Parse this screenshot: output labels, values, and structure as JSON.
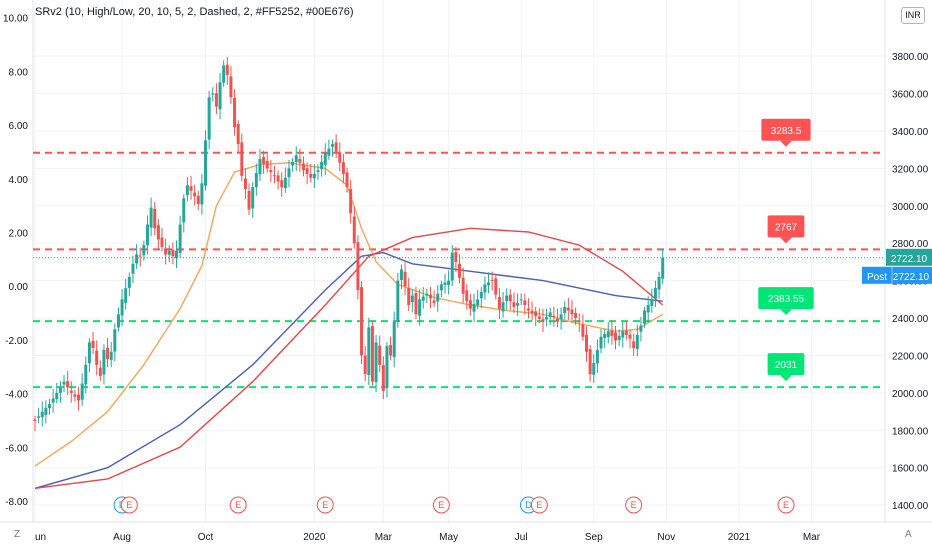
{
  "study_title": "SRv2 (10, High/Low, 20, 10, 5, 2, Dashed, 2, #FF5252, #00E676)",
  "currency": "INR",
  "corner_left": "Z",
  "corner_right": "A",
  "colors": {
    "up": "#26a69a",
    "down": "#ef5350",
    "resistance": "#FF5252",
    "support": "#00E676",
    "ma_blue": "#4a5fb0",
    "ma_red": "#e8464a",
    "ma_orange": "#f5a55a",
    "last_price_bg": "#26a69a",
    "post_bg": "#2196f3"
  },
  "chart_data": {
    "type": "line",
    "title": "",
    "x_axis_labels": [
      "un",
      "Aug",
      "Oct",
      "2020",
      "Mar",
      "May",
      "Jul",
      "Sep",
      "Nov",
      "2021",
      "Mar"
    ],
    "left_axis": {
      "ticks": [
        "10.00",
        "8.00",
        "6.00",
        "4.00",
        "2.00",
        "0.00",
        "-2.00",
        "-4.00",
        "-6.00",
        "-8.00"
      ],
      "range": [
        -8,
        10
      ]
    },
    "right_axis": {
      "ticks": [
        "3800.00",
        "3600.00",
        "3400.00",
        "3200.00",
        "3000.00",
        "2800.00",
        "2600.00",
        "2400.00",
        "2200.00",
        "2000.00",
        "1800.00",
        "1600.00",
        "1400.00"
      ],
      "range": [
        1310,
        4100
      ]
    },
    "price_series": {
      "name": "",
      "points": [
        [
          0,
          1850
        ],
        [
          2,
          1900
        ],
        [
          4,
          1940
        ],
        [
          6,
          2000
        ],
        [
          8,
          2060
        ],
        [
          10,
          2000
        ],
        [
          12,
          1960
        ],
        [
          13,
          2050
        ],
        [
          14,
          2150
        ],
        [
          15,
          2270
        ],
        [
          16,
          2240
        ],
        [
          17,
          2150
        ],
        [
          18,
          2090
        ],
        [
          19,
          2230
        ],
        [
          20,
          2180
        ],
        [
          21,
          2220
        ],
        [
          22,
          2340
        ],
        [
          23,
          2420
        ],
        [
          24,
          2500
        ],
        [
          25,
          2560
        ],
        [
          26,
          2620
        ],
        [
          27,
          2690
        ],
        [
          28,
          2740
        ],
        [
          29,
          2730
        ],
        [
          30,
          2790
        ],
        [
          31,
          2900
        ],
        [
          32,
          2990
        ],
        [
          33,
          2880
        ],
        [
          34,
          2820
        ],
        [
          35,
          2780
        ],
        [
          36,
          2740
        ],
        [
          37,
          2760
        ],
        [
          38,
          2730
        ],
        [
          39,
          2760
        ],
        [
          40,
          2900
        ],
        [
          41,
          3040
        ],
        [
          42,
          3110
        ],
        [
          43,
          3080
        ],
        [
          44,
          3050
        ],
        [
          45,
          3010
        ],
        [
          46,
          3120
        ],
        [
          47,
          3350
        ],
        [
          48,
          3580
        ],
        [
          49,
          3600
        ],
        [
          50,
          3530
        ],
        [
          51,
          3660
        ],
        [
          52,
          3750
        ],
        [
          53,
          3700
        ],
        [
          54,
          3580
        ],
        [
          55,
          3420
        ],
        [
          56,
          3330
        ],
        [
          57,
          3160
        ],
        [
          58,
          3090
        ],
        [
          59,
          2980
        ],
        [
          60,
          3100
        ],
        [
          62,
          3250
        ],
        [
          64,
          3200
        ],
        [
          66,
          3160
        ],
        [
          68,
          3100
        ],
        [
          70,
          3200
        ],
        [
          72,
          3270
        ],
        [
          74,
          3190
        ],
        [
          76,
          3150
        ],
        [
          78,
          3190
        ],
        [
          80,
          3280
        ],
        [
          82,
          3330
        ],
        [
          83,
          3290
        ],
        [
          84,
          3230
        ],
        [
          85,
          3170
        ],
        [
          86,
          3100
        ],
        [
          87,
          2960
        ],
        [
          88,
          2800
        ],
        [
          89,
          2550
        ],
        [
          90,
          2200
        ],
        [
          91,
          2100
        ],
        [
          92,
          2350
        ],
        [
          93,
          2060
        ],
        [
          94,
          2270
        ],
        [
          95,
          2150
        ],
        [
          96,
          2010
        ],
        [
          97,
          2250
        ],
        [
          98,
          2200
        ],
        [
          99,
          2380
        ],
        [
          100,
          2600
        ],
        [
          101,
          2660
        ],
        [
          102,
          2570
        ],
        [
          103,
          2470
        ],
        [
          104,
          2520
        ],
        [
          105,
          2420
        ],
        [
          106,
          2500
        ],
        [
          108,
          2530
        ],
        [
          110,
          2480
        ],
        [
          112,
          2580
        ],
        [
          114,
          2600
        ],
        [
          115,
          2750
        ],
        [
          116,
          2700
        ],
        [
          118,
          2530
        ],
        [
          120,
          2450
        ],
        [
          122,
          2500
        ],
        [
          124,
          2580
        ],
        [
          126,
          2600
        ],
        [
          128,
          2450
        ],
        [
          130,
          2520
        ],
        [
          132,
          2460
        ],
        [
          134,
          2500
        ],
        [
          136,
          2440
        ],
        [
          138,
          2410
        ],
        [
          140,
          2380
        ],
        [
          142,
          2430
        ],
        [
          144,
          2380
        ],
        [
          146,
          2460
        ],
        [
          148,
          2420
        ],
        [
          150,
          2380
        ],
        [
          151,
          2300
        ],
        [
          152,
          2220
        ],
        [
          153,
          2100
        ],
        [
          154,
          2160
        ],
        [
          155,
          2230
        ],
        [
          156,
          2300
        ],
        [
          158,
          2330
        ],
        [
          160,
          2280
        ],
        [
          162,
          2330
        ],
        [
          164,
          2290
        ],
        [
          165,
          2240
        ],
        [
          166,
          2310
        ],
        [
          167,
          2360
        ],
        [
          168,
          2440
        ],
        [
          169,
          2470
        ],
        [
          170,
          2500
        ],
        [
          171,
          2560
        ],
        [
          172,
          2620
        ],
        [
          173,
          2722
        ]
      ]
    },
    "ma_series": [
      {
        "name": "",
        "color_key": "ma_orange",
        "points": [
          [
            0,
            1610
          ],
          [
            10,
            1740
          ],
          [
            20,
            1900
          ],
          [
            30,
            2150
          ],
          [
            40,
            2450
          ],
          [
            46,
            2680
          ],
          [
            50,
            3000
          ],
          [
            55,
            3180
          ],
          [
            62,
            3220
          ],
          [
            70,
            3230
          ],
          [
            80,
            3200
          ],
          [
            86,
            3110
          ],
          [
            90,
            2880
          ],
          [
            94,
            2700
          ],
          [
            100,
            2580
          ],
          [
            110,
            2510
          ],
          [
            120,
            2470
          ],
          [
            130,
            2440
          ],
          [
            140,
            2420
          ],
          [
            150,
            2370
          ],
          [
            160,
            2330
          ],
          [
            166,
            2340
          ],
          [
            173,
            2420
          ]
        ]
      },
      {
        "name": "",
        "color_key": "ma_blue",
        "points": [
          [
            0,
            1490
          ],
          [
            20,
            1600
          ],
          [
            40,
            1830
          ],
          [
            60,
            2150
          ],
          [
            80,
            2550
          ],
          [
            90,
            2730
          ],
          [
            96,
            2750
          ],
          [
            104,
            2690
          ],
          [
            120,
            2650
          ],
          [
            140,
            2600
          ],
          [
            160,
            2520
          ],
          [
            173,
            2490
          ]
        ]
      },
      {
        "name": "",
        "color_key": "ma_red",
        "points": [
          [
            0,
            1490
          ],
          [
            20,
            1540
          ],
          [
            40,
            1710
          ],
          [
            60,
            2060
          ],
          [
            80,
            2470
          ],
          [
            92,
            2730
          ],
          [
            104,
            2830
          ],
          [
            120,
            2880
          ],
          [
            136,
            2860
          ],
          [
            150,
            2790
          ],
          [
            162,
            2650
          ],
          [
            173,
            2470
          ]
        ]
      }
    ],
    "levels": [
      {
        "type": "resistance",
        "value": 3283.5,
        "label": "3283.5"
      },
      {
        "type": "resistance",
        "value": 2767,
        "label": "2767"
      },
      {
        "type": "support",
        "value": 2383.55,
        "label": "2383.55"
      },
      {
        "type": "support",
        "value": 2031,
        "label": "2031"
      }
    ],
    "last_price": {
      "value": 2722.1,
      "label": "2722.10"
    },
    "post_price": {
      "label": "Post",
      "value": "2722.10"
    },
    "events": [
      {
        "x_index": 24,
        "label": "D",
        "kind": "dividend"
      },
      {
        "x_index": 26,
        "label": "E",
        "kind": "earnings"
      },
      {
        "x_index": 56,
        "label": "E",
        "kind": "earnings"
      },
      {
        "x_index": 80,
        "label": "E",
        "kind": "earnings"
      },
      {
        "x_index": 112,
        "label": "E",
        "kind": "earnings"
      },
      {
        "x_index": 136,
        "label": "D",
        "kind": "dividend"
      },
      {
        "x_index": 139,
        "label": "E",
        "kind": "earnings"
      },
      {
        "x_index": 165,
        "label": "E",
        "kind": "earnings"
      },
      {
        "x_index": 207,
        "label": "E",
        "kind": "earnings"
      }
    ],
    "x_label_index": [
      0,
      24,
      47,
      77,
      96,
      114,
      134,
      154,
      174,
      194,
      214
    ],
    "x_index_range": [
      0,
      226
    ],
    "grid": true
  }
}
